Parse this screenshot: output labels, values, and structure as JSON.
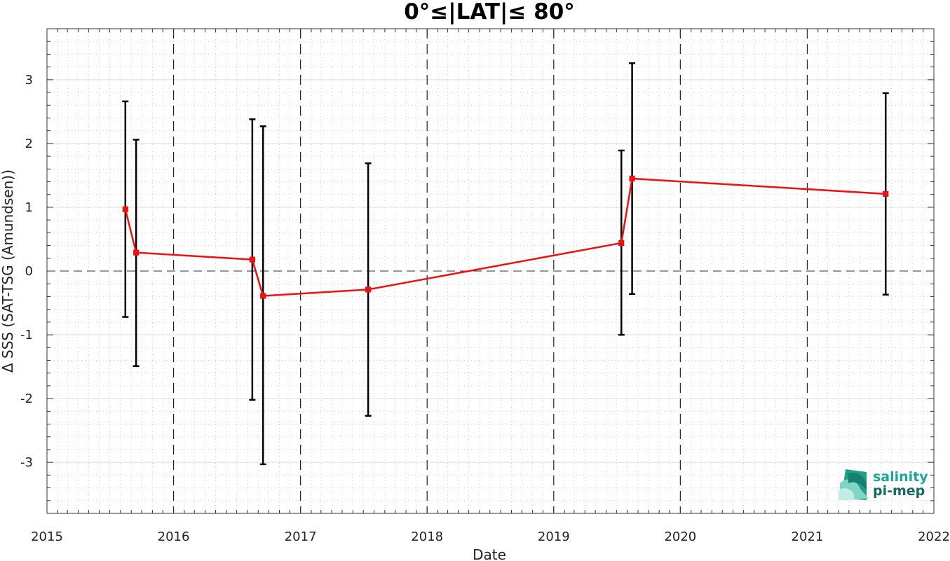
{
  "chart_data": {
    "type": "line",
    "title": "0°≤|LAT|≤ 80°",
    "xlabel": "Date",
    "ylabel": "Δ SSS (SAT-TSG (Amundsen))",
    "x_axis": {
      "type": "date",
      "range": [
        "2015-01-01",
        "2022-01-01"
      ],
      "ticks": [
        "2015",
        "2016",
        "2017",
        "2018",
        "2019",
        "2020",
        "2021",
        "2022"
      ]
    },
    "y_axis": {
      "range": [
        -3.8,
        3.8
      ],
      "ticks": [
        -3,
        -2,
        -1,
        0,
        1,
        2,
        3
      ],
      "tick_labels": [
        "-3",
        "-2",
        "-1",
        "0",
        "1",
        "2",
        "3"
      ]
    },
    "grid": {
      "major": true,
      "minor": true,
      "year_lines": "dashed"
    },
    "zero_line": "dashed",
    "series": [
      {
        "color": "#ee1111",
        "marker": "square",
        "errorbar_color": "#000000",
        "points": [
          {
            "x": "2015-08-15",
            "y": 0.97,
            "err_low": -0.72,
            "err_high": 2.66
          },
          {
            "x": "2015-09-15",
            "y": 0.29,
            "err_low": -1.49,
            "err_high": 2.06
          },
          {
            "x": "2016-08-15",
            "y": 0.18,
            "err_low": -2.02,
            "err_high": 2.38
          },
          {
            "x": "2016-09-15",
            "y": -0.39,
            "err_low": -3.03,
            "err_high": 2.27
          },
          {
            "x": "2017-07-15",
            "y": -0.29,
            "err_low": -2.27,
            "err_high": 1.69
          },
          {
            "x": "2019-07-15",
            "y": 0.44,
            "err_low": -1.0,
            "err_high": 1.89
          },
          {
            "x": "2019-08-15",
            "y": 1.45,
            "err_low": -0.36,
            "err_high": 3.26
          },
          {
            "x": "2021-08-15",
            "y": 1.21,
            "err_low": -0.37,
            "err_high": 2.79
          }
        ]
      }
    ]
  },
  "logo": {
    "line1": "salinity",
    "line2": "pi-mep",
    "color1": "#1aa79a",
    "color2": "#136b66"
  }
}
